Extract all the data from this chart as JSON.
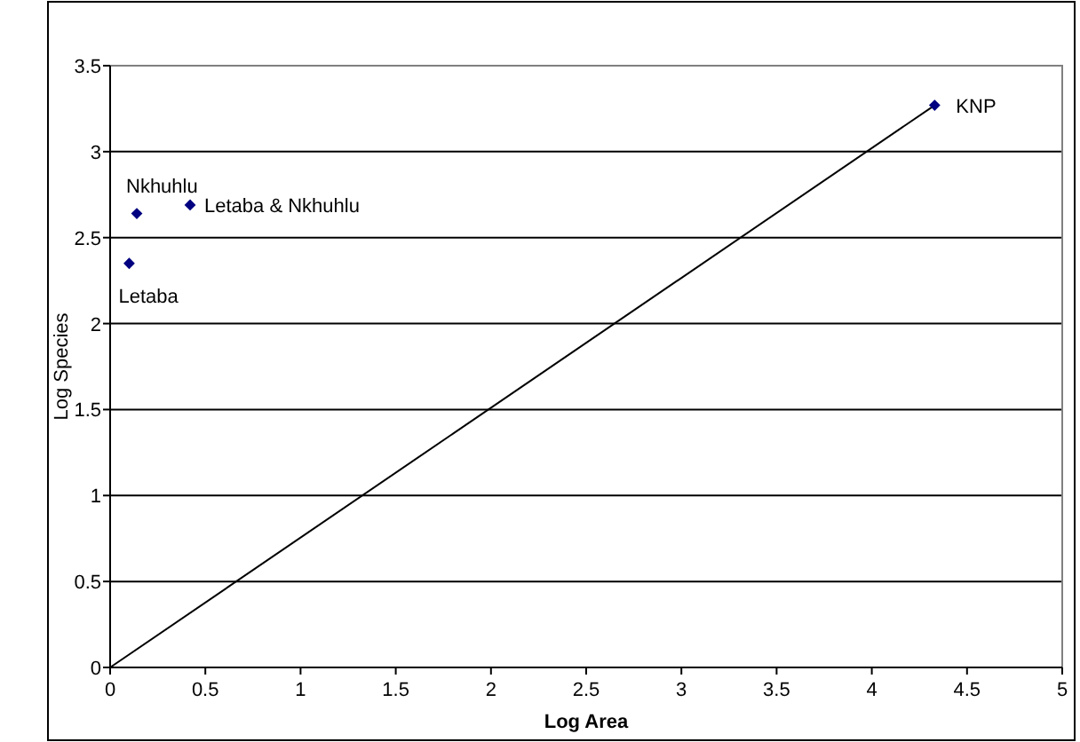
{
  "chart_data": {
    "type": "scatter",
    "xlabel": "Log Area",
    "ylabel": "Log Species",
    "series": [
      {
        "color": "#000080",
        "marker": "diamond",
        "x": [
          0.1,
          0.14,
          0.42,
          4.33
        ],
        "values": [
          2.35,
          2.64,
          2.69,
          3.27
        ]
      },
      {
        "type": "line",
        "marker": "none",
        "color": "#000000",
        "x": [
          0,
          4.33
        ],
        "values": [
          0,
          3.27
        ]
      }
    ],
    "xlim": [
      0,
      5
    ],
    "xticks": [
      0,
      0.5,
      1,
      1.5,
      2,
      2.5,
      3,
      3.5,
      4,
      4.5,
      5
    ],
    "ylim": [
      0,
      3.5
    ],
    "yticks": [
      0,
      0.5,
      1,
      1.5,
      2,
      2.5,
      3,
      3.5
    ],
    "grid": "y",
    "annotations": [
      {
        "text": "Letaba",
        "x": 0.1,
        "y": 2.35
      },
      {
        "text": "Nkhuhlu",
        "x": 0.14,
        "y": 2.64
      },
      {
        "text": "Letaba & Nkhuhlu",
        "x": 0.42,
        "y": 2.69
      },
      {
        "text": "KNP",
        "x": 4.33,
        "y": 3.27
      }
    ]
  }
}
